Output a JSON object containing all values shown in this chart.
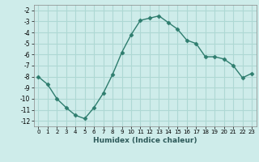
{
  "x": [
    0,
    1,
    2,
    3,
    4,
    5,
    6,
    7,
    8,
    9,
    10,
    11,
    12,
    13,
    14,
    15,
    16,
    17,
    18,
    19,
    20,
    21,
    22,
    23
  ],
  "y": [
    -8.0,
    -8.7,
    -10.0,
    -10.8,
    -11.5,
    -11.8,
    -10.8,
    -9.5,
    -7.8,
    -5.8,
    -4.2,
    -2.9,
    -2.7,
    -2.5,
    -3.1,
    -3.7,
    -4.7,
    -5.0,
    -6.2,
    -6.2,
    -6.4,
    -7.0,
    -8.1,
    -7.7
  ],
  "line_color": "#2e7d6e",
  "marker": "D",
  "marker_size": 2.5,
  "bg_color": "#ceecea",
  "grid_color": "#aed8d4",
  "xlabel": "Humidex (Indice chaleur)",
  "xlim": [
    -0.5,
    23.5
  ],
  "ylim": [
    -12.5,
    -1.5
  ],
  "yticks": [
    -12,
    -11,
    -10,
    -9,
    -8,
    -7,
    -6,
    -5,
    -4,
    -3,
    -2
  ],
  "xticks": [
    0,
    1,
    2,
    3,
    4,
    5,
    6,
    7,
    8,
    9,
    10,
    11,
    12,
    13,
    14,
    15,
    16,
    17,
    18,
    19,
    20,
    21,
    22,
    23
  ]
}
